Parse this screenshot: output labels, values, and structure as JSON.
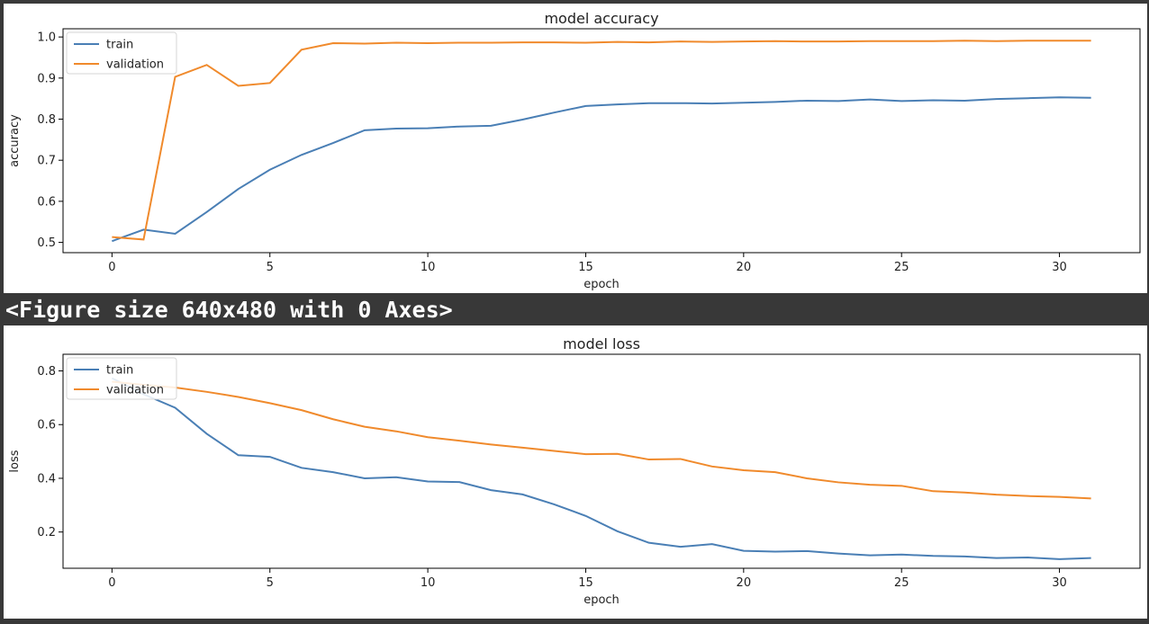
{
  "output_text": "<Figure size 640x480 with 0 Axes>",
  "chart_data": [
    {
      "type": "line",
      "title": "model accuracy",
      "xlabel": "epoch",
      "ylabel": "accuracy",
      "xlim": [
        -1.55,
        32.55
      ],
      "ylim": [
        0.475,
        1.02
      ],
      "xticks": [
        0,
        5,
        10,
        15,
        20,
        25,
        30
      ],
      "yticks": [
        0.5,
        0.6,
        0.7,
        0.8,
        0.9,
        1.0
      ],
      "ytick_labels": [
        "0.5",
        "0.6",
        "0.7",
        "0.8",
        "0.9",
        "1.0"
      ],
      "legend": "upper left",
      "grid": false,
      "x": [
        0,
        1,
        2,
        3,
        4,
        5,
        6,
        7,
        8,
        9,
        10,
        11,
        12,
        13,
        14,
        15,
        16,
        17,
        18,
        19,
        20,
        21,
        22,
        23,
        24,
        25,
        26,
        27,
        28,
        29,
        30,
        31
      ],
      "series": [
        {
          "name": "train",
          "color": "#4a7fb5",
          "values": [
            0.503,
            0.531,
            0.521,
            0.574,
            0.63,
            0.677,
            0.713,
            0.742,
            0.773,
            0.777,
            0.778,
            0.782,
            0.784,
            0.799,
            0.816,
            0.832,
            0.836,
            0.839,
            0.839,
            0.838,
            0.84,
            0.842,
            0.845,
            0.844,
            0.848,
            0.844,
            0.846,
            0.845,
            0.849,
            0.851,
            0.853,
            0.852
          ]
        },
        {
          "name": "validation",
          "color": "#f08a2c",
          "values": [
            0.513,
            0.507,
            0.903,
            0.932,
            0.881,
            0.888,
            0.969,
            0.985,
            0.984,
            0.986,
            0.985,
            0.986,
            0.986,
            0.987,
            0.987,
            0.986,
            0.988,
            0.987,
            0.989,
            0.988,
            0.989,
            0.99,
            0.989,
            0.989,
            0.99,
            0.99,
            0.99,
            0.991,
            0.99,
            0.991,
            0.991,
            0.991
          ]
        }
      ]
    },
    {
      "type": "line",
      "title": "model loss",
      "xlabel": "epoch",
      "ylabel": "loss",
      "xlim": [
        -1.55,
        32.55
      ],
      "ylim": [
        0.065,
        0.862
      ],
      "xticks": [
        0,
        5,
        10,
        15,
        20,
        25,
        30
      ],
      "yticks": [
        0.2,
        0.4,
        0.6,
        0.8
      ],
      "ytick_labels": [
        "0.2",
        "0.4",
        "0.6",
        "0.8"
      ],
      "legend": "upper left",
      "grid": false,
      "x": [
        0,
        1,
        2,
        3,
        4,
        5,
        6,
        7,
        8,
        9,
        10,
        11,
        12,
        13,
        14,
        15,
        16,
        17,
        18,
        19,
        20,
        21,
        22,
        23,
        24,
        25,
        26,
        27,
        28,
        29,
        30,
        31
      ],
      "series": [
        {
          "name": "train",
          "color": "#4a7fb5",
          "values": [
            0.773,
            0.713,
            0.663,
            0.566,
            0.486,
            0.48,
            0.439,
            0.423,
            0.4,
            0.404,
            0.388,
            0.386,
            0.356,
            0.34,
            0.303,
            0.26,
            0.203,
            0.16,
            0.145,
            0.155,
            0.13,
            0.127,
            0.129,
            0.12,
            0.113,
            0.116,
            0.111,
            0.109,
            0.103,
            0.105,
            0.099,
            0.103
          ]
        },
        {
          "name": "validation",
          "color": "#f08a2c",
          "values": [
            0.76,
            0.748,
            0.738,
            0.722,
            0.703,
            0.68,
            0.654,
            0.62,
            0.592,
            0.575,
            0.553,
            0.54,
            0.526,
            0.514,
            0.502,
            0.49,
            0.491,
            0.47,
            0.472,
            0.444,
            0.43,
            0.423,
            0.4,
            0.385,
            0.376,
            0.372,
            0.352,
            0.347,
            0.339,
            0.334,
            0.331,
            0.325
          ]
        }
      ]
    }
  ]
}
